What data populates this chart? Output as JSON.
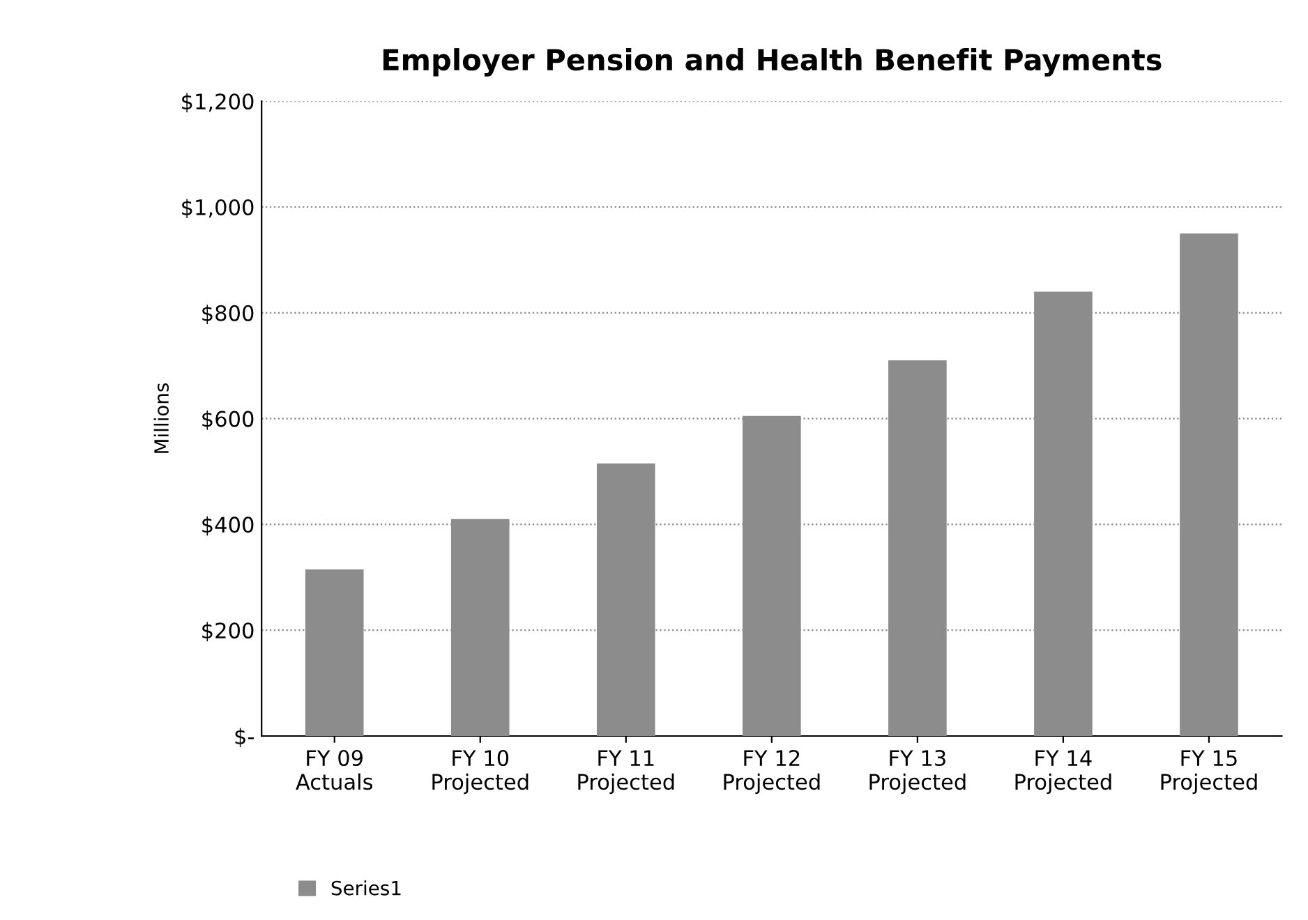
{
  "chart_data": {
    "type": "bar",
    "title": "Employer Pension and Health Benefit Payments",
    "ylabel": "Millions",
    "categories": [
      "FY 09\nActuals",
      "FY 10\nProjected",
      "FY 11\nProjected",
      "FY 12\nProjected",
      "FY 13\nProjected",
      "FY 14\nProjected",
      "FY 15\nProjected"
    ],
    "series": [
      {
        "name": "Series1",
        "color": "#8c8c8c",
        "values": [
          315,
          410,
          515,
          605,
          710,
          840,
          950
        ]
      }
    ],
    "ylim": [
      0,
      1200
    ],
    "yticks": [
      {
        "value": 0,
        "label": "$-"
      },
      {
        "value": 200,
        "label": "$200"
      },
      {
        "value": 400,
        "label": "$400"
      },
      {
        "value": 600,
        "label": "$600"
      },
      {
        "value": 800,
        "label": "$800"
      },
      {
        "value": 1000,
        "label": "$1,000"
      },
      {
        "value": 1200,
        "label": "$1,200"
      }
    ],
    "grid": "y",
    "legend": "bottom left"
  }
}
